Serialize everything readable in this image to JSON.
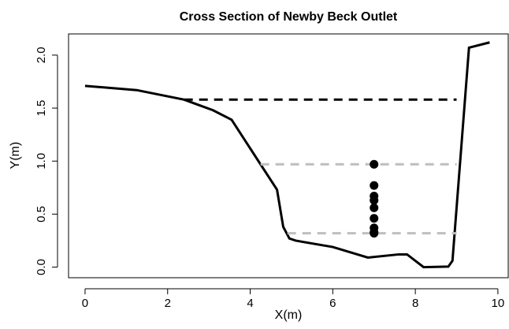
{
  "chart_data": {
    "type": "line",
    "title": "Cross Section of Newby Beck Outlet",
    "x_label": "X(m)",
    "y_label": "Y(m)",
    "xlim": [
      -0.4,
      10.25
    ],
    "ylim": [
      -0.1,
      2.2
    ],
    "xticks": [
      0,
      2,
      4,
      6,
      8,
      10
    ],
    "yticks": [
      {
        "value": 0,
        "label": "0.0"
      },
      {
        "value": 0.5,
        "label": "0.5"
      },
      {
        "value": 1,
        "label": "1.0"
      },
      {
        "value": 1.5,
        "label": "1.5"
      },
      {
        "value": 2,
        "label": "2.0"
      }
    ],
    "series": [
      {
        "color": "#000000",
        "style": "solid",
        "x": [
          0,
          1.25,
          2.4,
          3.1,
          3.55,
          3.95,
          4.25,
          4.65,
          4.8,
          4.95,
          5.1,
          6.0,
          6.85,
          7.6,
          7.8,
          8.2,
          8.8,
          8.9,
          9.3,
          9.8
        ],
        "values": [
          1.71,
          1.67,
          1.58,
          1.48,
          1.39,
          1.15,
          0.97,
          0.73,
          0.38,
          0.27,
          0.25,
          0.19,
          0.09,
          0.12,
          0.12,
          0.0,
          0.005,
          0.06,
          2.07,
          2.12
        ]
      },
      {
        "color": "#000000",
        "style": "dashed",
        "x": [
          2.4,
          9.0
        ],
        "values": [
          1.58,
          1.58
        ]
      },
      {
        "color": "#bebebe",
        "style": "dashed",
        "x": [
          4.25,
          9.0
        ],
        "values": [
          0.97,
          0.97
        ]
      },
      {
        "color": "#bebebe",
        "style": "dashed",
        "x": [
          4.9,
          9.0
        ],
        "values": [
          0.32,
          0.32
        ]
      },
      {
        "color": "#000000",
        "style": "points",
        "x": [
          7,
          7,
          7,
          7,
          7,
          7,
          7,
          7,
          7
        ],
        "values": [
          0.97,
          0.77,
          0.67,
          0.63,
          0.56,
          0.46,
          0.37,
          0.33,
          0.32
        ]
      }
    ]
  }
}
